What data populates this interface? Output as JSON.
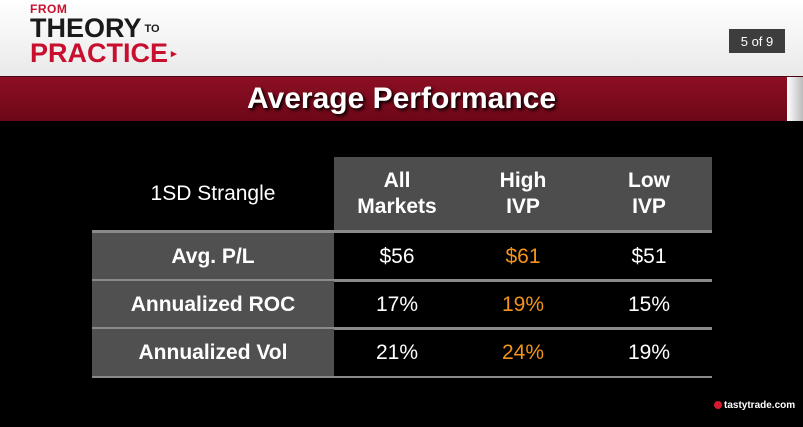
{
  "header": {
    "logo": {
      "line1": "FROM",
      "line2": "THEORY",
      "line2_small": "TO",
      "line3": "PRACTICE",
      "line3_mark": "▸"
    },
    "slide_counter": "5 of 9"
  },
  "title": "Average Performance",
  "table": {
    "corner_label": "1SD Strangle",
    "columns": [
      "All Markets",
      "High IVP",
      "Low IVP"
    ],
    "rows": [
      {
        "label": "Avg. P/L",
        "values": [
          "$56",
          "$61",
          "$51"
        ]
      },
      {
        "label": "Annualized ROC",
        "values": [
          "17%",
          "19%",
          "15%"
        ]
      },
      {
        "label": "Annualized Vol",
        "values": [
          "21%",
          "24%",
          "19%"
        ]
      }
    ]
  },
  "footer": {
    "brand": "tastytrade.com"
  },
  "colors": {
    "brand_red": "#8d0f24",
    "highlight": "#f2931b",
    "header_cell": "#4d4d4d"
  }
}
